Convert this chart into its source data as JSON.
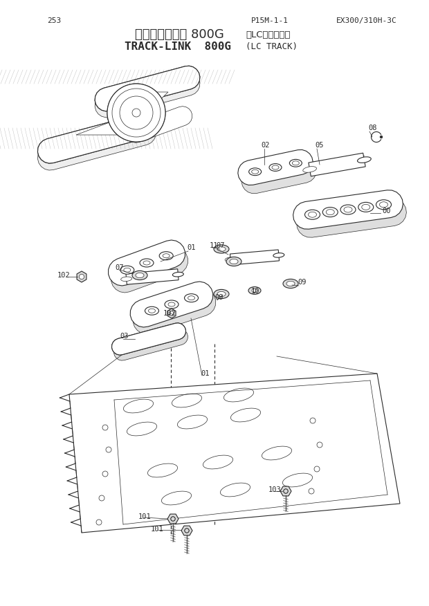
{
  "page_number": "253",
  "doc_ref": "P15M-1-1",
  "model": "EX300/310H-3C",
  "title_jp1": "トラックリンク 800G",
  "title_jp2": "（LCトラック）",
  "title_en1": "TRACK-LINK  800G",
  "title_en2": "(LC TRACK)",
  "bg": "#ffffff",
  "lc": "#2a2a2a",
  "lw": 0.8,
  "lw_thick": 1.2,
  "lw_thin": 0.5,
  "fs_label": 7.5,
  "fs_title_jp": 13,
  "fs_title_en": 11.5,
  "fs_header": 8
}
